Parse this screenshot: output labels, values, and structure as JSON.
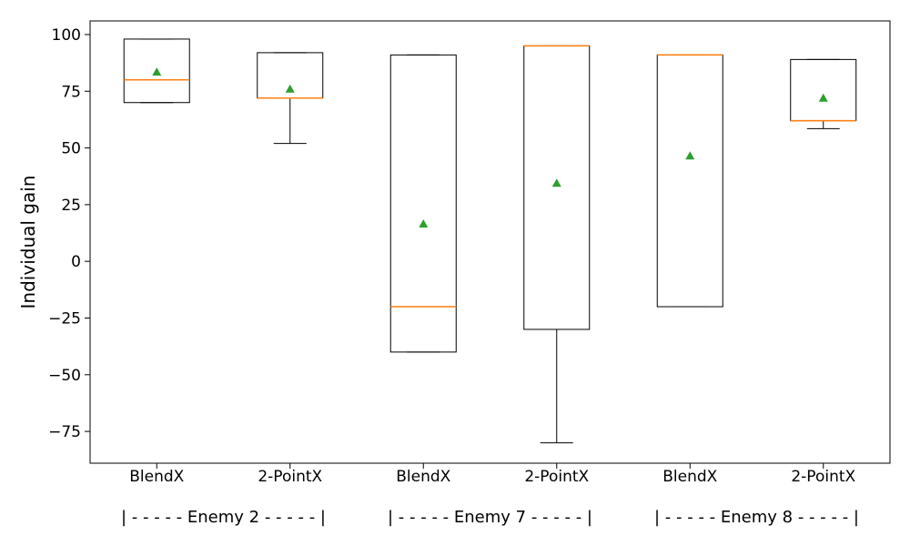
{
  "chart_data": {
    "type": "boxplot",
    "title": "",
    "xlabel": "",
    "ylabel": "Individual gain",
    "ylim": [
      -89,
      106
    ],
    "yticks": [
      100,
      75,
      50,
      25,
      0,
      -25,
      -50,
      -75
    ],
    "grid": false,
    "categories": [
      "BlendX",
      "2-PointX",
      "BlendX",
      "2-PointX",
      "BlendX",
      "2-PointX"
    ],
    "groups": [
      "| - - - - - Enemy 2 - - - - - |",
      "| - - - - - Enemy 7 - - - - - |",
      "| - - - - - Enemy 8 - - - - - |"
    ],
    "boxes": [
      {
        "whisker_low": 70,
        "q1": 70,
        "median": 80,
        "q3": 98,
        "whisker_high": 98,
        "mean": 83.5
      },
      {
        "whisker_low": 52,
        "q1": 72,
        "median": 72,
        "q3": 92,
        "whisker_high": 92,
        "mean": 76
      },
      {
        "whisker_low": -40,
        "q1": -40,
        "median": -20,
        "q3": 91,
        "whisker_high": 91,
        "mean": 16.5
      },
      {
        "whisker_low": -80,
        "q1": -30,
        "median": 95,
        "q3": 95,
        "whisker_high": 95,
        "mean": 34.5
      },
      {
        "whisker_low": -20,
        "q1": -20,
        "median": 91,
        "q3": 91,
        "whisker_high": 91,
        "mean": 46.5
      },
      {
        "whisker_low": 58.5,
        "q1": 62,
        "median": 62,
        "q3": 89,
        "whisker_high": 89,
        "mean": 72
      }
    ],
    "colors": {
      "box": "#000000",
      "median": "#ff7f0e",
      "mean": "#2ca02c"
    }
  }
}
